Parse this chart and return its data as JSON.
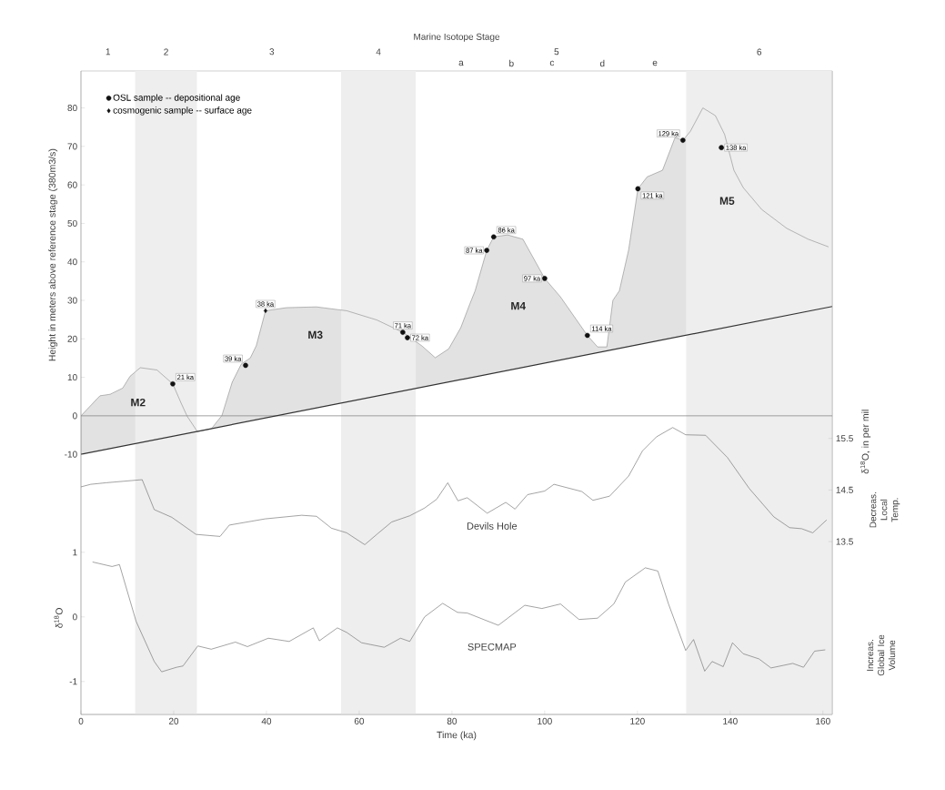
{
  "chart_data": [
    {
      "type": "area",
      "ylabel": "Height in meters above reference stage (380m3/s)",
      "xlim": [
        0,
        162
      ],
      "ylim": [
        -77.6,
        89.6
      ],
      "yticks": [
        -10,
        0,
        10,
        20,
        30,
        40,
        50,
        60,
        70,
        80
      ],
      "tick_labels": "y",
      "legend": "top left",
      "bands": [
        {
          "axis": "x",
          "from": 11.7,
          "to": 25,
          "color": "#eeeeee",
          "label": "2"
        },
        {
          "axis": "x",
          "from": 56.1,
          "to": 72.2,
          "color": "#eeeeee",
          "label": "4"
        },
        {
          "axis": "x",
          "from": 130.5,
          "to": 162,
          "color": "#eeeeee",
          "label": "6"
        }
      ],
      "ref_lines": [
        {
          "axis": "y",
          "value": 0,
          "color": "#888888"
        }
      ],
      "annotations": [
        "Marine Isotope Stage",
        "1",
        "3",
        "5",
        "a",
        "b",
        "c",
        "d",
        "e",
        "M2",
        "M3",
        "M4",
        "M5",
        {
          "text": "21 ka",
          "x": 19.8,
          "y": 8.3
        },
        {
          "text": "39 ka",
          "x": 35.5,
          "y": 13.1
        },
        {
          "text": "38 ka",
          "x": 39.8,
          "y": 27.3
        },
        {
          "text": "71 ka",
          "x": 69.4,
          "y": 21.7
        },
        {
          "text": "72 ka",
          "x": 70.4,
          "y": 20.3
        },
        {
          "text": "87 ka",
          "x": 87.5,
          "y": 43.0
        },
        {
          "text": "86 ka",
          "x": 89.0,
          "y": 46.5
        },
        {
          "text": "97 ka",
          "x": 100.0,
          "y": 35.7
        },
        {
          "text": "114 ka",
          "x": 109.2,
          "y": 20.9
        },
        {
          "text": "121 ka",
          "x": 120.1,
          "y": 59.0
        },
        {
          "text": "129 ka",
          "x": 129.8,
          "y": 71.6
        },
        {
          "text": "138 ka",
          "x": 138.1,
          "y": 69.7
        }
      ],
      "series": [
        {
          "type": "area",
          "color": "#e2e2e2",
          "x": [
            0,
            0,
            4.1,
            6.3,
            9.0,
            10.6,
            12.8,
            16.4,
            19.8,
            21.6,
            22.9,
            25.1,
            28.1,
            30.4,
            32.6,
            34.6,
            36.5,
            37.8,
            39.8,
            44.3,
            50.8,
            57.3,
            63.8,
            69.4,
            73.5,
            76.4,
            79.3,
            81.9,
            83.9,
            85.0,
            87.5,
            89.0,
            92.0,
            95.3,
            100.0,
            103.4,
            106.7,
            109.2,
            111.4,
            113.4,
            114.7,
            116.1,
            118.1,
            120.1,
            122.1,
            125.4,
            128.1,
            129.8,
            131.4,
            134.1,
            136.8,
            138.8,
            140.8,
            142.8,
            146.8,
            152.2,
            156.8,
            161.2
          ],
          "values": [
            -10,
            0,
            5.2,
            5.6,
            7.2,
            10.3,
            12.5,
            11.9,
            8.3,
            3.3,
            -0.1,
            -4.1,
            -3.4,
            0.1,
            8.7,
            13.5,
            15.0,
            18.2,
            27.3,
            28.1,
            28.3,
            27.3,
            24.9,
            21.7,
            18.2,
            15.1,
            17.4,
            22.9,
            29.2,
            32.5,
            43.0,
            46.5,
            47.0,
            45.9,
            35.7,
            30.9,
            25.2,
            20.9,
            17.9,
            17.9,
            30.0,
            32.5,
            43.1,
            59.0,
            62.1,
            63.8,
            72.3,
            71.6,
            73.9,
            80.0,
            78.0,
            73.1,
            63.8,
            59.3,
            53.6,
            48.7,
            45.9,
            43.9
          ]
        },
        {
          "type": "line",
          "color": "#333333",
          "x": [
            0,
            162
          ],
          "values": [
            -10,
            28.4
          ]
        },
        {
          "type": "scatter",
          "name": "OSL sample -- depositional age",
          "marker": "circle",
          "color": "#111111",
          "x": [
            19.8,
            35.5,
            69.4,
            70.4,
            87.5,
            89.0,
            100.0,
            109.2,
            120.1,
            129.8,
            138.1
          ],
          "values": [
            8.3,
            13.1,
            21.7,
            20.3,
            43.0,
            46.5,
            35.7,
            20.9,
            59.0,
            71.6,
            69.7
          ]
        },
        {
          "type": "scatter",
          "name": "cosmogenic sample -- surface age",
          "marker": "diamond",
          "color": "#111111",
          "x": [
            39.8
          ],
          "values": [
            27.3
          ]
        }
      ]
    },
    {
      "type": "line",
      "y2label": "δ$^{18}$O, in per mil",
      "xlim": [
        0,
        162
      ],
      "y2lim": [
        10.15,
        22.62
      ],
      "y2ticks": [
        13.5,
        14.5,
        15.5
      ],
      "tick_labels": "y",
      "annotations": [
        "Decreas. Local Temp."
      ],
      "series": [
        {
          "name": "Devils Hole",
          "axis": "y2",
          "color": "#666666",
          "x": [
            0,
            2.1,
            5.4,
            13.2,
            15.8,
            19.6,
            24.8,
            30.0,
            32.0,
            39.7,
            47.6,
            50.8,
            54.0,
            57.3,
            61.2,
            63.8,
            67.0,
            70.9,
            74.1,
            76.7,
            79.1,
            81.3,
            83.3,
            87.6,
            91.6,
            93.6,
            96.3,
            100.0,
            102.0,
            108.0,
            110.4,
            114.0,
            118.1,
            121.1,
            124.1,
            127.6,
            130.4,
            134.7,
            139.4,
            144.1,
            149.4,
            152.8,
            155.4,
            157.8,
            160.8
          ],
          "values": [
            14.56,
            14.61,
            14.64,
            14.7,
            14.12,
            13.97,
            13.64,
            13.6,
            13.82,
            13.94,
            14.01,
            13.99,
            13.76,
            13.67,
            13.44,
            13.64,
            13.88,
            14.0,
            14.15,
            14.32,
            14.64,
            14.29,
            14.35,
            14.05,
            14.26,
            14.13,
            14.41,
            14.48,
            14.61,
            14.47,
            14.3,
            14.38,
            14.77,
            15.26,
            15.53,
            15.71,
            15.57,
            15.56,
            15.13,
            14.53,
            13.98,
            13.77,
            13.75,
            13.67,
            13.92
          ]
        }
      ]
    },
    {
      "type": "line",
      "ylabel": "δ$^{18}$O",
      "xlabel": "Time (ka)",
      "xlim": [
        0,
        162
      ],
      "xticks": [
        0,
        20,
        40,
        60,
        80,
        100,
        120,
        140,
        160
      ],
      "ylim": [
        -1.51,
        8.45
      ],
      "yticks": [
        -1,
        0,
        1
      ],
      "annotations": [
        "Increas. Global Ice Volume"
      ],
      "series": [
        {
          "name": "SPECMAP",
          "color": "#666666",
          "x": [
            2.5,
            6.7,
            8.3,
            11.9,
            15.8,
            17.4,
            20.6,
            22.0,
            25.2,
            28.1,
            33.3,
            35.9,
            40.4,
            44.9,
            50.1,
            51.4,
            55.3,
            57.3,
            60.5,
            65.4,
            68.9,
            70.9,
            74.1,
            78.0,
            81.2,
            83.3,
            90.0,
            95.7,
            99.4,
            103.4,
            107.4,
            111.4,
            114.9,
            117.4,
            121.7,
            124.4,
            126.7,
            130.4,
            132.1,
            134.5,
            136.1,
            138.5,
            140.5,
            142.8,
            146.2,
            148.8,
            153.5,
            155.8,
            158.2,
            160.5
          ],
          "values": [
            0.85,
            0.78,
            0.81,
            -0.07,
            -0.69,
            -0.85,
            -0.78,
            -0.76,
            -0.45,
            -0.5,
            -0.39,
            -0.46,
            -0.33,
            -0.38,
            -0.17,
            -0.37,
            -0.17,
            -0.24,
            -0.4,
            -0.47,
            -0.33,
            -0.38,
            0.0,
            0.21,
            0.07,
            0.06,
            -0.13,
            0.18,
            0.13,
            0.2,
            -0.04,
            -0.02,
            0.2,
            0.54,
            0.76,
            0.71,
            0.2,
            -0.52,
            -0.35,
            -0.84,
            -0.69,
            -0.77,
            -0.4,
            -0.57,
            -0.65,
            -0.79,
            -0.72,
            -0.78,
            -0.53,
            -0.51
          ]
        }
      ]
    }
  ]
}
